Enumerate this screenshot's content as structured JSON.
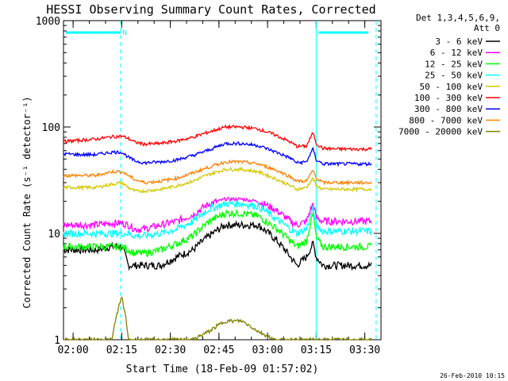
{
  "chart_data": {
    "type": "line",
    "title": "HESSI Observing Summary Count Rates, Corrected",
    "xlabel": "Start Time (18-Feb-09 01:57:02)",
    "ylabel": "Corrected Count Rate (s⁻¹ detector⁻¹)",
    "yscale": "log",
    "ylim": [
      1,
      1000
    ],
    "xlim": [
      "01:57:02",
      "03:35:00"
    ],
    "x_ticks": [
      "02:00",
      "02:15",
      "02:30",
      "02:45",
      "03:00",
      "03:15",
      "03:30"
    ],
    "y_ticks": [
      "1",
      "10",
      "100",
      "1000"
    ],
    "legend_header": [
      "Det 1,3,4,5,6,9,",
      "Att 0"
    ],
    "legend_placement": "top-right, outside plot",
    "time_minutes": [
      0,
      5,
      10,
      15,
      18,
      20,
      22,
      25,
      30,
      35,
      40,
      45,
      50,
      55,
      60,
      65,
      70,
      72,
      75,
      77,
      78,
      80,
      85,
      90,
      95
    ],
    "series": [
      {
        "name": "3 - 6 keV",
        "color": "#000000",
        "values": [
          7,
          7,
          7,
          7.5,
          7.5,
          5,
          5,
          5,
          5,
          6,
          7,
          9.5,
          12,
          12,
          12,
          9,
          6,
          5,
          6,
          8,
          6,
          5,
          5,
          5,
          5
        ]
      },
      {
        "name": "6 - 12 keV",
        "color": "#ff00ff",
        "values": [
          12,
          12,
          12,
          12.5,
          12.5,
          12,
          11,
          11,
          12,
          13,
          15,
          19,
          21,
          21,
          20,
          17,
          13,
          12,
          13,
          19,
          14,
          13,
          13,
          13,
          13
        ]
      },
      {
        "name": "12 - 25 keV",
        "color": "#00ff00",
        "values": [
          7.5,
          7.5,
          7.5,
          7.5,
          7.5,
          7,
          6.5,
          6.5,
          7,
          8,
          9.5,
          13,
          15.5,
          15.5,
          14.5,
          11.5,
          8.5,
          7.5,
          8.5,
          15,
          9,
          7.5,
          7.5,
          7.5,
          7.5
        ]
      },
      {
        "name": "25 - 50 keV",
        "color": "#00ffff",
        "values": [
          10,
          10,
          10,
          10,
          10,
          10,
          9.5,
          9.5,
          10,
          11,
          13,
          17,
          19,
          19,
          18,
          14,
          11,
          10,
          11,
          17,
          12,
          10.5,
          10.5,
          10.5,
          10.5
        ]
      },
      {
        "name": "50 - 100 keV",
        "color": "#d4c800",
        "values": [
          27,
          27,
          27,
          29,
          30,
          27,
          25,
          25,
          26,
          28,
          31,
          36,
          40,
          40,
          38,
          33,
          28,
          26,
          27,
          33,
          28,
          26,
          26,
          26,
          26
        ]
      },
      {
        "name": "100 - 300 keV",
        "color": "#ff0000",
        "values": [
          73,
          75,
          77,
          81,
          82,
          78,
          72,
          69,
          70,
          74,
          80,
          90,
          100,
          100,
          96,
          85,
          72,
          66,
          66,
          88,
          70,
          63,
          62,
          62,
          62
        ]
      },
      {
        "name": "300 - 800 keV",
        "color": "#0000ff",
        "values": [
          56,
          55,
          55,
          58,
          58,
          52,
          48,
          46,
          47,
          49,
          54,
          61,
          70,
          70,
          67,
          59,
          51,
          46,
          47,
          62,
          49,
          45,
          45,
          45,
          45
        ]
      },
      {
        "name": "800 - 7000 keV",
        "color": "#ff8000",
        "values": [
          35,
          35,
          35,
          38,
          38,
          35,
          32,
          30,
          31,
          33,
          37,
          42,
          47,
          47,
          45,
          40,
          34,
          31,
          31,
          39,
          33,
          30,
          30,
          30,
          30
        ]
      },
      {
        "name": "7000 - 20000 keV",
        "color": "#808000",
        "values": [
          1,
          1,
          1,
          1,
          2.5,
          1,
          1,
          1,
          1,
          1,
          1,
          1.2,
          1.5,
          1.5,
          1.2,
          1,
          1,
          1,
          1,
          1,
          1,
          1,
          1,
          1,
          1
        ]
      }
    ],
    "annotations": [
      {
        "type": "attenuator-segment",
        "label": "",
        "from": "01:57:02",
        "to": "02:14:40"
      },
      {
        "type": "attenuator-segment",
        "label": "N",
        "from": "02:15:30",
        "to": "02:16:20"
      },
      {
        "type": "attenuator-segment",
        "label": "",
        "from": "03:15:00",
        "to": "03:35:00"
      }
    ],
    "vertical_lines": [
      {
        "time": "02:14:40",
        "style": "dashed"
      },
      {
        "time": "03:15:00",
        "style": "solid"
      },
      {
        "time": "03:33:30",
        "style": "dashed"
      }
    ]
  },
  "footer": {
    "timestamp": "26-Feb-2010 10:15"
  },
  "colors": {
    "background": "#ffffff",
    "axes": "#000000",
    "markers": "#00ffff"
  }
}
